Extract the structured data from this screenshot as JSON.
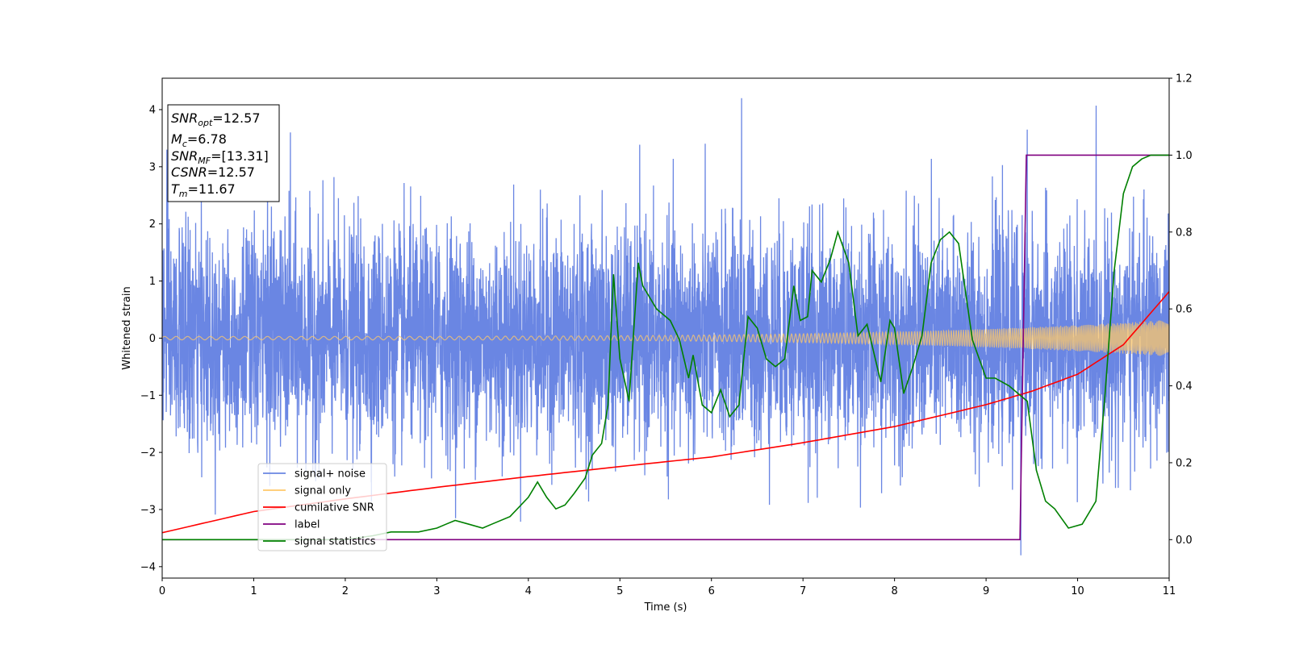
{
  "chart_data": {
    "type": "line",
    "xlabel": "Time (s)",
    "ylabel": "Whitened strain",
    "xlim": [
      0,
      11
    ],
    "ylim_left": [
      -4.2,
      4.55
    ],
    "ylim_right": [
      -0.1,
      1.2
    ],
    "x_ticks": [
      "0",
      "1",
      "2",
      "3",
      "4",
      "5",
      "6",
      "7",
      "8",
      "9",
      "10",
      "11"
    ],
    "y_left_ticks": [
      "4",
      "3",
      "2",
      "1",
      "0",
      "−1",
      "−2",
      "−3",
      "−4"
    ],
    "y_left_tick_values": [
      4,
      3,
      2,
      1,
      0,
      -1,
      -2,
      -3,
      -4
    ],
    "y_right_ticks": [
      "1.2",
      "1.0",
      "0.8",
      "0.6",
      "0.4",
      "0.2",
      "0.0"
    ],
    "y_right_tick_values": [
      1.2,
      1.0,
      0.8,
      0.6,
      0.4,
      0.2,
      0.0
    ],
    "info_box": {
      "lines": [
        {
          "main": "SNR",
          "sub": "opt",
          "rest": "=12.57"
        },
        {
          "main": "M",
          "sub": "c",
          "rest": "=6.78"
        },
        {
          "main": "SNR",
          "sub": "MF",
          "rest": "=[13.31]"
        },
        {
          "main": "CSNR",
          "sub": "",
          "rest": "=12.57"
        },
        {
          "main": "T",
          "sub": "m",
          "rest": "=11.67"
        }
      ]
    },
    "legend": {
      "placement": "lower-left",
      "entries": [
        {
          "label": "signal+ noise",
          "color": "#6a86e3"
        },
        {
          "label": "signal only",
          "color": "#ffc86a"
        },
        {
          "label": "cumilative SNR",
          "color": "#ff0000"
        },
        {
          "label": "label",
          "color": "#800080"
        },
        {
          "label": "signal statistics",
          "color": "#008000"
        }
      ]
    },
    "series": [
      {
        "name": "signal+ noise",
        "axis": "left",
        "color": "#6a86e3",
        "kind": "noise",
        "noise_std": 0.95,
        "peak_times": [
          0.05,
          1.15,
          1.4,
          6.33,
          9.45,
          9.38
        ],
        "peak_values": [
          3.3,
          3.0,
          3.6,
          4.2,
          3.65,
          -3.8
        ]
      },
      {
        "name": "signal only",
        "axis": "left",
        "color": "#ffc86a",
        "kind": "chirp",
        "amplitude_start": 0.03,
        "amplitude_end": 0.32
      },
      {
        "name": "cumilative SNR",
        "axis": "right",
        "color": "#ff0000",
        "x": [
          0,
          1,
          2,
          3,
          4,
          5,
          6,
          7,
          8,
          9,
          9.5,
          10,
          10.5,
          11
        ],
        "y": [
          0.018,
          0.073,
          0.106,
          0.136,
          0.164,
          0.19,
          0.215,
          0.252,
          0.294,
          0.351,
          0.386,
          0.43,
          0.507,
          0.645
        ]
      },
      {
        "name": "label",
        "axis": "right",
        "color": "#800080",
        "x": [
          0,
          9.37,
          9.44,
          11
        ],
        "y": [
          0,
          0,
          1.0,
          1.0
        ]
      },
      {
        "name": "signal statistics",
        "axis": "right",
        "color": "#008000",
        "x": [
          0,
          0.5,
          1.0,
          1.5,
          2.0,
          2.3,
          2.5,
          2.8,
          3.0,
          3.1,
          3.2,
          3.35,
          3.5,
          3.6,
          3.8,
          4.0,
          4.1,
          4.2,
          4.3,
          4.4,
          4.5,
          4.62,
          4.7,
          4.8,
          4.87,
          4.93,
          5.0,
          5.1,
          5.2,
          5.25,
          5.4,
          5.55,
          5.65,
          5.75,
          5.8,
          5.9,
          6.0,
          6.1,
          6.2,
          6.3,
          6.4,
          6.5,
          6.6,
          6.7,
          6.8,
          6.9,
          6.97,
          7.05,
          7.1,
          7.2,
          7.3,
          7.38,
          7.5,
          7.6,
          7.7,
          7.85,
          7.95,
          8.0,
          8.1,
          8.2,
          8.3,
          8.4,
          8.5,
          8.6,
          8.7,
          8.85,
          9.0,
          9.1,
          9.25,
          9.35,
          9.45,
          9.55,
          9.65,
          9.75,
          9.9,
          10.05,
          10.2,
          10.3,
          10.4,
          10.5,
          10.6,
          10.7,
          10.8,
          11.0
        ],
        "y": [
          0,
          0,
          0,
          0,
          0,
          0.01,
          0.02,
          0.02,
          0.03,
          0.04,
          0.05,
          0.04,
          0.03,
          0.04,
          0.06,
          0.11,
          0.15,
          0.11,
          0.08,
          0.09,
          0.12,
          0.16,
          0.22,
          0.25,
          0.35,
          0.69,
          0.47,
          0.36,
          0.72,
          0.66,
          0.6,
          0.57,
          0.52,
          0.42,
          0.48,
          0.35,
          0.33,
          0.39,
          0.32,
          0.35,
          0.58,
          0.55,
          0.47,
          0.45,
          0.47,
          0.66,
          0.57,
          0.58,
          0.7,
          0.67,
          0.73,
          0.8,
          0.72,
          0.53,
          0.56,
          0.41,
          0.57,
          0.55,
          0.38,
          0.45,
          0.53,
          0.72,
          0.78,
          0.8,
          0.77,
          0.52,
          0.42,
          0.42,
          0.4,
          0.38,
          0.36,
          0.18,
          0.1,
          0.08,
          0.03,
          0.04,
          0.1,
          0.38,
          0.7,
          0.9,
          0.97,
          0.99,
          1.0,
          1.0
        ]
      }
    ]
  }
}
